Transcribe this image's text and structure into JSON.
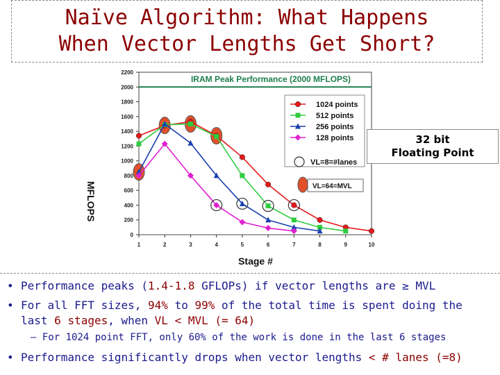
{
  "slide": {
    "title_line1": "Naïve Algorithm: What Happens",
    "title_line2": "When Vector Lengths Get Short?",
    "note_line1": "32 bit",
    "note_line2": "Floating Point",
    "bullet1": {
      "a": "Performance peaks (",
      "b": "1.4-1.8",
      "c": " GFLOPs) if vector lengths are ≥ MVL"
    },
    "bullet2": {
      "a": "For all FFT sizes, ",
      "b": "94%",
      "c": " to ",
      "d": "99%",
      "e": " of the total time is spent doing the"
    },
    "bullet2_cont": {
      "a": "last ",
      "b": "6 stages",
      "c": ", when ",
      "d": "VL < MVL (= 64)"
    },
    "sub_bullet": "– For 1024 point FFT, only 60% of the work is done in the last 6 stages",
    "bullet3": {
      "a": "Performance significantly drops when vector lengths ",
      "b": "< # lanes (=8)"
    }
  },
  "chart_data": {
    "type": "line",
    "ylabel": "MFLOPS",
    "xlabel": "Stage #",
    "xlim": [
      1,
      10
    ],
    "ylim": [
      0,
      2200
    ],
    "yticks": [
      0,
      200,
      400,
      600,
      800,
      1000,
      1200,
      1400,
      1600,
      1800,
      2000,
      2200
    ],
    "xticks": [
      1,
      2,
      3,
      4,
      5,
      6,
      7,
      8,
      9,
      10
    ],
    "reference_line": {
      "value": 2000,
      "label": "IRAM Peak Performance (2000 MFLOPS)"
    },
    "series": [
      {
        "name": "1024 points",
        "color": "#e41a1c",
        "marker": "circle",
        "x": [
          1,
          2,
          3,
          4,
          5,
          6,
          7,
          8,
          9,
          10
        ],
        "y": [
          1340,
          1480,
          1530,
          1340,
          1050,
          680,
          400,
          200,
          100,
          50
        ]
      },
      {
        "name": "512 points",
        "color": "#2ecc40",
        "marker": "square",
        "x": [
          1,
          2,
          3,
          4,
          5,
          6,
          7,
          8,
          9
        ],
        "y": [
          1230,
          1490,
          1500,
          1330,
          800,
          390,
          200,
          100,
          50
        ]
      },
      {
        "name": "256 points",
        "color": "#1a3fb0",
        "marker": "triangle",
        "x": [
          1,
          2,
          3,
          4,
          5,
          6,
          7,
          8
        ],
        "y": [
          850,
          1500,
          1240,
          800,
          420,
          200,
          100,
          50
        ]
      },
      {
        "name": "128 points",
        "color": "#e020d0",
        "marker": "diamond",
        "x": [
          1,
          2,
          3,
          4,
          5,
          6,
          7
        ],
        "y": [
          800,
          1230,
          800,
          400,
          170,
          90,
          50
        ]
      }
    ],
    "legend_position": "right",
    "annotations": [
      {
        "label": "VL=8=#lanes",
        "marker": "hollow-circle"
      },
      {
        "label": "VL=64=MVL",
        "marker": "filled-ellipse"
      }
    ],
    "vl8_points": [
      {
        "x": 4,
        "y": 400
      },
      {
        "x": 5,
        "y": 420
      },
      {
        "x": 6,
        "y": 390
      },
      {
        "x": 7,
        "y": 400
      }
    ],
    "vl64_points": [
      {
        "x": 1,
        "y": 850
      },
      {
        "x": 2,
        "y": 1480
      },
      {
        "x": 3,
        "y": 1500
      },
      {
        "x": 4,
        "y": 1340
      }
    ]
  }
}
